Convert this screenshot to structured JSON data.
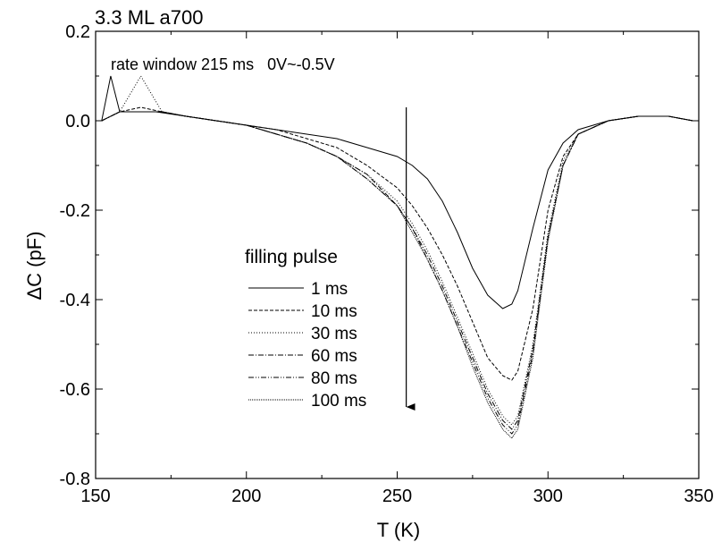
{
  "chart_data": {
    "type": "line",
    "title": "3.3 ML a700",
    "annotation": "rate window 215 ms   0V~-0.5V",
    "xlabel": "T (K)",
    "ylabel": "ΔC (pF)",
    "xlim": [
      150,
      350
    ],
    "ylim": [
      -0.8,
      0.2
    ],
    "xticks": [
      150,
      200,
      250,
      300,
      350
    ],
    "yticks": [
      0.2,
      0.0,
      -0.2,
      -0.4,
      -0.6,
      -0.8
    ],
    "ytick_labels": [
      "0.2",
      "0.0",
      "-0.2",
      "-0.4",
      "-0.6",
      "-0.8"
    ],
    "grid": false,
    "legend": {
      "title": "filling pulse",
      "placement": "center-left"
    },
    "arrow": {
      "x": 253,
      "y_from": 0.03,
      "y_to": -0.64
    },
    "series": [
      {
        "name": "1 ms",
        "dash": "",
        "x": [
          152,
          155,
          158,
          162,
          170,
          180,
          190,
          200,
          210,
          220,
          230,
          240,
          250,
          255,
          260,
          265,
          270,
          275,
          280,
          285,
          288,
          290,
          295,
          300,
          305,
          310,
          320,
          330,
          340,
          348
        ],
        "y": [
          0.0,
          0.1,
          0.02,
          0.02,
          0.02,
          0.01,
          0.0,
          -0.01,
          -0.02,
          -0.03,
          -0.04,
          -0.06,
          -0.08,
          -0.1,
          -0.13,
          -0.18,
          -0.25,
          -0.33,
          -0.39,
          -0.42,
          -0.41,
          -0.38,
          -0.24,
          -0.11,
          -0.05,
          -0.02,
          0.0,
          0.01,
          0.01,
          0.0
        ]
      },
      {
        "name": "10 ms",
        "dash": "4,2",
        "x": [
          152,
          158,
          165,
          172,
          180,
          190,
          200,
          210,
          220,
          230,
          240,
          250,
          255,
          260,
          265,
          270,
          275,
          280,
          285,
          288,
          290,
          295,
          300,
          305,
          310,
          320,
          330,
          340,
          348
        ],
        "y": [
          0.0,
          0.02,
          0.03,
          0.02,
          0.01,
          0.0,
          -0.01,
          -0.02,
          -0.04,
          -0.06,
          -0.1,
          -0.15,
          -0.19,
          -0.24,
          -0.3,
          -0.37,
          -0.45,
          -0.53,
          -0.57,
          -0.58,
          -0.56,
          -0.42,
          -0.2,
          -0.08,
          -0.03,
          0.0,
          0.01,
          0.01,
          0.0
        ]
      },
      {
        "name": "30 ms",
        "dash": "1,2",
        "x": [
          152,
          158,
          165,
          172,
          180,
          190,
          200,
          210,
          220,
          230,
          240,
          250,
          255,
          260,
          265,
          270,
          275,
          280,
          285,
          288,
          290,
          295,
          300,
          305,
          310,
          320,
          330,
          340,
          348
        ],
        "y": [
          0.0,
          0.02,
          0.1,
          0.02,
          0.01,
          0.0,
          -0.01,
          -0.03,
          -0.05,
          -0.08,
          -0.12,
          -0.18,
          -0.23,
          -0.29,
          -0.36,
          -0.44,
          -0.52,
          -0.6,
          -0.66,
          -0.68,
          -0.66,
          -0.5,
          -0.25,
          -0.09,
          -0.03,
          0.0,
          0.01,
          0.01,
          0.0
        ]
      },
      {
        "name": "60 ms",
        "dash": "6,2,1,2",
        "x": [
          152,
          158,
          165,
          172,
          180,
          190,
          200,
          210,
          220,
          230,
          240,
          250,
          255,
          260,
          265,
          270,
          275,
          280,
          285,
          288,
          290,
          295,
          300,
          305,
          310,
          320,
          330,
          340,
          348
        ],
        "y": [
          0.0,
          0.02,
          0.02,
          0.02,
          0.01,
          0.0,
          -0.01,
          -0.03,
          -0.05,
          -0.08,
          -0.12,
          -0.19,
          -0.24,
          -0.3,
          -0.37,
          -0.45,
          -0.53,
          -0.61,
          -0.67,
          -0.69,
          -0.67,
          -0.51,
          -0.26,
          -0.1,
          -0.03,
          0.0,
          0.01,
          0.01,
          0.0
        ]
      },
      {
        "name": "80 ms",
        "dash": "6,2,1,2,1,2",
        "x": [
          152,
          158,
          165,
          172,
          180,
          190,
          200,
          210,
          220,
          230,
          240,
          250,
          255,
          260,
          265,
          270,
          275,
          280,
          285,
          288,
          290,
          295,
          300,
          305,
          310,
          320,
          330,
          340,
          348
        ],
        "y": [
          0.0,
          0.02,
          0.02,
          0.02,
          0.01,
          0.0,
          -0.01,
          -0.03,
          -0.05,
          -0.08,
          -0.13,
          -0.19,
          -0.24,
          -0.31,
          -0.38,
          -0.46,
          -0.54,
          -0.62,
          -0.68,
          -0.7,
          -0.68,
          -0.52,
          -0.26,
          -0.1,
          -0.03,
          0.0,
          0.01,
          0.01,
          0.0
        ]
      },
      {
        "name": "100 ms",
        "dash": "1,1",
        "x": [
          152,
          158,
          165,
          172,
          180,
          190,
          200,
          210,
          220,
          230,
          240,
          250,
          255,
          260,
          265,
          270,
          275,
          280,
          285,
          288,
          290,
          295,
          300,
          305,
          310,
          320,
          330,
          340,
          348
        ],
        "y": [
          0.0,
          0.02,
          0.02,
          0.02,
          0.01,
          0.0,
          -0.01,
          -0.03,
          -0.05,
          -0.08,
          -0.13,
          -0.19,
          -0.25,
          -0.31,
          -0.38,
          -0.46,
          -0.55,
          -0.63,
          -0.69,
          -0.71,
          -0.69,
          -0.53,
          -0.27,
          -0.1,
          -0.03,
          0.0,
          0.01,
          0.01,
          0.0
        ]
      }
    ]
  }
}
